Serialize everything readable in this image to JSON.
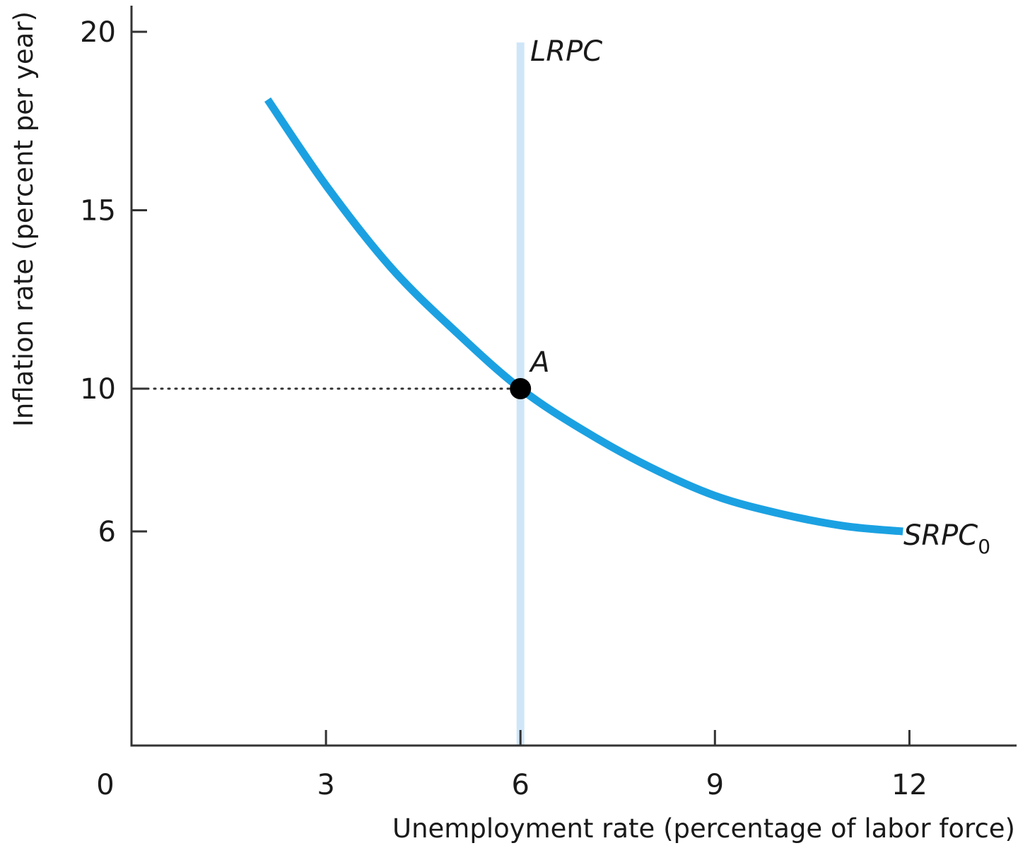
{
  "chart_data": {
    "type": "line",
    "xlabel": "Unemployment rate (percentage of labor force)",
    "ylabel": "Inflation rate (percent per year)",
    "origin_label": "0",
    "x_ticks": [
      3,
      6,
      9,
      12
    ],
    "y_ticks": [
      6,
      10,
      15,
      20
    ],
    "xlim": [
      0,
      13.7
    ],
    "ylim": [
      0,
      20
    ],
    "grid": false,
    "colors": {
      "srpc": "#1ba1e2",
      "lrpc": "#cfe6f8",
      "point": "#000000",
      "axis": "#333333"
    },
    "series": [
      {
        "name": "SRPC",
        "label_main": "SRPC",
        "label_sub": "0",
        "x": [
          2.1,
          3,
          4,
          5,
          6,
          7,
          8,
          9,
          10,
          11,
          11.9
        ],
        "y": [
          18.1,
          15.7,
          13.4,
          11.6,
          10.0,
          8.8,
          7.8,
          7.0,
          6.5,
          6.15,
          6.0
        ]
      },
      {
        "name": "LRPC",
        "label": "LRPC",
        "x": [
          6,
          6
        ],
        "y": [
          0,
          19.7
        ]
      }
    ],
    "points": [
      {
        "label": "A",
        "x": 6,
        "y": 10
      }
    ],
    "guides": [
      {
        "from": [
          0,
          10
        ],
        "to": [
          6,
          10
        ],
        "style": "dotted"
      }
    ]
  }
}
